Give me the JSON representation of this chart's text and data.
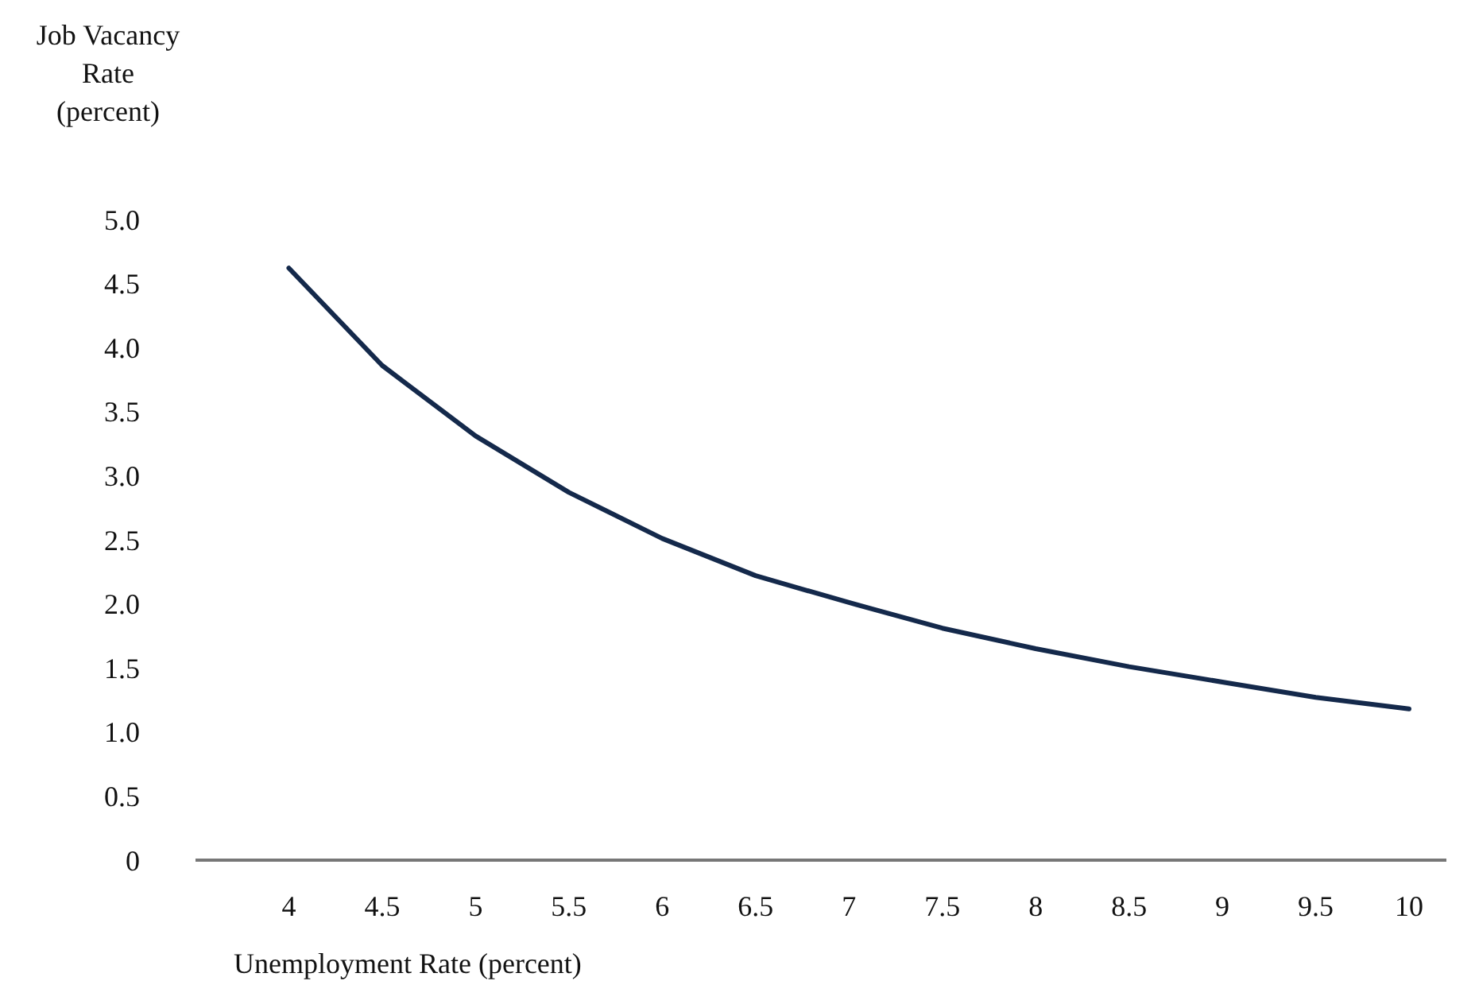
{
  "chart_data": {
    "type": "line",
    "ylabel": "Job Vacancy Rate (percent)",
    "xlabel": "Unemployment Rate (percent)",
    "x": [
      4,
      4.5,
      5,
      5.5,
      6,
      6.5,
      7,
      7.5,
      8,
      8.5,
      9,
      9.5,
      10
    ],
    "series": [
      {
        "color": "#14294b",
        "values": [
          4.62,
          3.86,
          3.31,
          2.87,
          2.51,
          2.22,
          2.01,
          1.81,
          1.65,
          1.51,
          1.39,
          1.27,
          1.18
        ]
      }
    ],
    "xlim": [
      3.5,
      10.2
    ],
    "xticks": [
      4,
      4.5,
      5,
      5.5,
      6,
      6.5,
      7,
      7.5,
      8,
      8.5,
      9,
      9.5,
      10
    ],
    "ylim": [
      0,
      5
    ],
    "yticks": [
      0,
      {
        "value": 0.5,
        "label": "0.5"
      },
      {
        "value": 1,
        "label": "1.0"
      },
      {
        "value": 1.5,
        "label": "1.5"
      },
      {
        "value": 2,
        "label": "2.0"
      },
      {
        "value": 2.5,
        "label": "2.5"
      },
      {
        "value": 3,
        "label": "3.0"
      },
      {
        "value": 3.5,
        "label": "3.5"
      },
      {
        "value": 4,
        "label": "4.0"
      },
      {
        "value": 4.5,
        "label": "4.5"
      },
      {
        "value": 5,
        "label": "5.0"
      }
    ],
    "grid": false,
    "marker": "none",
    "line_style": "solid"
  }
}
